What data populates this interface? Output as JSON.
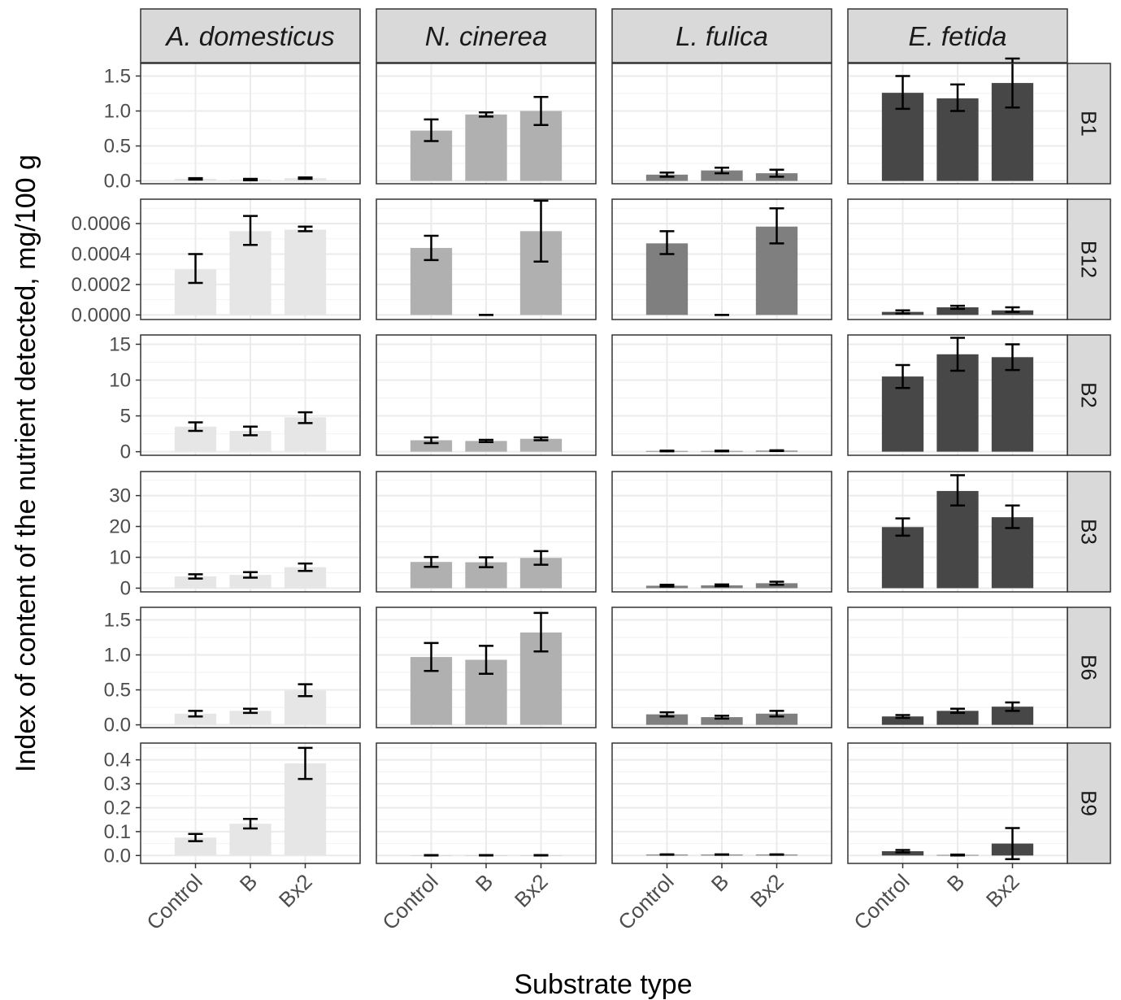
{
  "chart_data": {
    "type": "bar",
    "facet_layout": "grid",
    "xlabel": "Substrate type",
    "ylabel": "Index of content of the nutrient detected, mg/100 g",
    "categories": [
      "Control",
      "B",
      "Bx2"
    ],
    "columns": [
      "A. domesticus",
      "N. cinerea",
      "L. fulica",
      "E. fetida"
    ],
    "rows": [
      "B1",
      "B12",
      "B2",
      "B3",
      "B6",
      "B9"
    ],
    "column_colors": [
      "#e6e6e6",
      "#b0b0b0",
      "#7f7f7f",
      "#474747"
    ],
    "grid": true,
    "free_y_scales": true,
    "row_axes": [
      {
        "row": "B1",
        "ylim": [
          -0.04,
          1.68
        ],
        "ticks": [
          0.0,
          0.5,
          1.0,
          1.5
        ],
        "tick_labels": [
          "0.0",
          "0.5",
          "1.0",
          "1.5"
        ]
      },
      {
        "row": "B12",
        "ylim": [
          -3e-05,
          0.00076
        ],
        "ticks": [
          0.0,
          0.0002,
          0.0004,
          0.0006
        ],
        "tick_labels": [
          "0.0000",
          "0.0002",
          "0.0004",
          "0.0006"
        ]
      },
      {
        "row": "B2",
        "ylim": [
          -0.5,
          16.3
        ],
        "ticks": [
          0,
          5,
          10,
          15
        ],
        "tick_labels": [
          "0",
          "5",
          "10",
          "15"
        ]
      },
      {
        "row": "B3",
        "ylim": [
          -1.2,
          37.8
        ],
        "ticks": [
          0,
          10,
          20,
          30
        ],
        "tick_labels": [
          "0",
          "10",
          "20",
          "30"
        ]
      },
      {
        "row": "B6",
        "ylim": [
          -0.04,
          1.68
        ],
        "ticks": [
          0.0,
          0.5,
          1.0,
          1.5
        ],
        "tick_labels": [
          "0.0",
          "0.5",
          "1.0",
          "1.5"
        ]
      },
      {
        "row": "B9",
        "ylim": [
          -0.033,
          0.47
        ],
        "ticks": [
          0.0,
          0.1,
          0.2,
          0.3,
          0.4
        ],
        "tick_labels": [
          "0.0",
          "0.1",
          "0.2",
          "0.3",
          "0.4"
        ]
      }
    ],
    "panels": [
      {
        "row": "B1",
        "column": "A. domesticus",
        "values": [
          0.03,
          0.02,
          0.04
        ],
        "error_low": [
          0.02,
          0.01,
          0.03
        ],
        "error_high": [
          0.04,
          0.03,
          0.05
        ]
      },
      {
        "row": "B1",
        "column": "N. cinerea",
        "values": [
          0.72,
          0.95,
          1.0
        ],
        "error_low": [
          0.57,
          0.92,
          0.8
        ],
        "error_high": [
          0.88,
          0.98,
          1.2
        ]
      },
      {
        "row": "B1",
        "column": "L. fulica",
        "values": [
          0.09,
          0.15,
          0.11
        ],
        "error_low": [
          0.06,
          0.11,
          0.06
        ],
        "error_high": [
          0.12,
          0.19,
          0.16
        ]
      },
      {
        "row": "B1",
        "column": "E. fetida",
        "values": [
          1.26,
          1.18,
          1.4
        ],
        "error_low": [
          1.03,
          1.0,
          1.05
        ],
        "error_high": [
          1.5,
          1.38,
          1.75
        ]
      },
      {
        "row": "B12",
        "column": "A. domesticus",
        "values": [
          0.0003,
          0.00055,
          0.00056
        ],
        "error_low": [
          0.00021,
          0.00046,
          0.00055
        ],
        "error_high": [
          0.0004,
          0.00065,
          0.00058
        ]
      },
      {
        "row": "B12",
        "column": "N. cinerea",
        "values": [
          0.00044,
          0.0,
          0.00055
        ],
        "error_low": [
          0.00036,
          0.0,
          0.00035
        ],
        "error_high": [
          0.00052,
          0.0,
          0.00075
        ]
      },
      {
        "row": "B12",
        "column": "L. fulica",
        "values": [
          0.00047,
          0.0,
          0.00058
        ],
        "error_low": [
          0.0004,
          0.0,
          0.00047
        ],
        "error_high": [
          0.00055,
          0.0,
          0.0007
        ]
      },
      {
        "row": "B12",
        "column": "E. fetida",
        "values": [
          2e-05,
          5e-05,
          3e-05
        ],
        "error_low": [
          1e-05,
          4e-05,
          2e-05
        ],
        "error_high": [
          3e-05,
          6e-05,
          5e-05
        ]
      },
      {
        "row": "B2",
        "column": "A. domesticus",
        "values": [
          3.5,
          2.9,
          4.8
        ],
        "error_low": [
          2.9,
          2.3,
          4.0
        ],
        "error_high": [
          4.1,
          3.5,
          5.5
        ]
      },
      {
        "row": "B2",
        "column": "N. cinerea",
        "values": [
          1.6,
          1.5,
          1.8
        ],
        "error_low": [
          1.2,
          1.35,
          1.6
        ],
        "error_high": [
          2.0,
          1.65,
          2.0
        ]
      },
      {
        "row": "B2",
        "column": "L. fulica",
        "values": [
          0.1,
          0.1,
          0.15
        ],
        "error_low": [
          0.05,
          0.05,
          0.1
        ],
        "error_high": [
          0.15,
          0.15,
          0.2
        ]
      },
      {
        "row": "B2",
        "column": "E. fetida",
        "values": [
          10.5,
          13.6,
          13.2
        ],
        "error_low": [
          8.9,
          11.3,
          11.4
        ],
        "error_high": [
          12.1,
          15.9,
          15.0
        ]
      },
      {
        "row": "B3",
        "column": "A. domesticus",
        "values": [
          3.8,
          4.3,
          6.8
        ],
        "error_low": [
          3.1,
          3.4,
          5.6
        ],
        "error_high": [
          4.5,
          5.2,
          8.0
        ]
      },
      {
        "row": "B3",
        "column": "N. cinerea",
        "values": [
          8.5,
          8.4,
          9.8
        ],
        "error_low": [
          6.9,
          6.8,
          7.6
        ],
        "error_high": [
          10.1,
          10.0,
          12.0
        ]
      },
      {
        "row": "B3",
        "column": "L. fulica",
        "values": [
          0.8,
          0.9,
          1.6
        ],
        "error_low": [
          0.5,
          0.6,
          1.1
        ],
        "error_high": [
          1.1,
          1.2,
          2.1
        ]
      },
      {
        "row": "B3",
        "column": "E. fetida",
        "values": [
          19.8,
          31.5,
          23.0
        ],
        "error_low": [
          17.0,
          26.8,
          19.5
        ],
        "error_high": [
          22.6,
          36.6,
          26.8
        ]
      },
      {
        "row": "B6",
        "column": "A. domesticus",
        "values": [
          0.16,
          0.2,
          0.49
        ],
        "error_low": [
          0.12,
          0.17,
          0.41
        ],
        "error_high": [
          0.2,
          0.23,
          0.58
        ]
      },
      {
        "row": "B6",
        "column": "N. cinerea",
        "values": [
          0.97,
          0.93,
          1.32
        ],
        "error_low": [
          0.77,
          0.73,
          1.05
        ],
        "error_high": [
          1.17,
          1.13,
          1.6
        ]
      },
      {
        "row": "B6",
        "column": "L. fulica",
        "values": [
          0.15,
          0.11,
          0.16
        ],
        "error_low": [
          0.12,
          0.09,
          0.12
        ],
        "error_high": [
          0.18,
          0.13,
          0.2
        ]
      },
      {
        "row": "B6",
        "column": "E. fetida",
        "values": [
          0.12,
          0.2,
          0.26
        ],
        "error_low": [
          0.1,
          0.17,
          0.2
        ],
        "error_high": [
          0.14,
          0.23,
          0.32
        ]
      },
      {
        "row": "B9",
        "column": "A. domesticus",
        "values": [
          0.075,
          0.133,
          0.385
        ],
        "error_low": [
          0.06,
          0.113,
          0.32
        ],
        "error_high": [
          0.09,
          0.153,
          0.45
        ]
      },
      {
        "row": "B9",
        "column": "N. cinerea",
        "values": [
          0.001,
          0.001,
          0.001
        ],
        "error_low": [
          0.0,
          0.0,
          0.0
        ],
        "error_high": [
          0.002,
          0.002,
          0.002
        ]
      },
      {
        "row": "B9",
        "column": "L. fulica",
        "values": [
          0.004,
          0.004,
          0.004
        ],
        "error_low": [
          0.003,
          0.003,
          0.003
        ],
        "error_high": [
          0.005,
          0.005,
          0.005
        ]
      },
      {
        "row": "B9",
        "column": "E. fetida",
        "values": [
          0.018,
          0.002,
          0.05
        ],
        "error_low": [
          0.013,
          0.0,
          -0.015
        ],
        "error_high": [
          0.023,
          0.004,
          0.115
        ]
      }
    ]
  }
}
